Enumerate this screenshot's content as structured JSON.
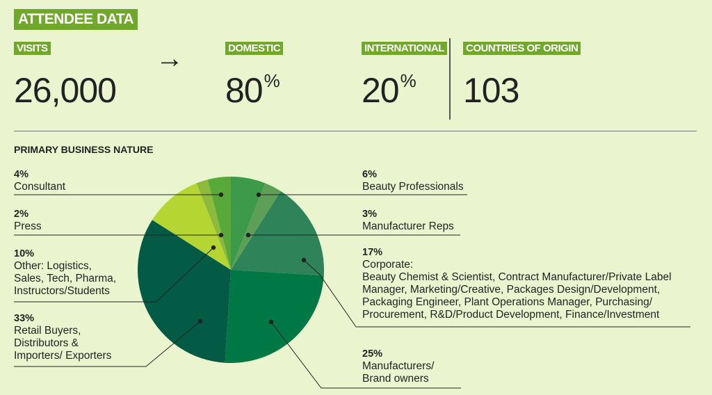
{
  "header": {
    "title": "ATTENDEE DATA"
  },
  "stats": {
    "visits": {
      "label": "VISITS",
      "value": "26,000"
    },
    "arrow": "→",
    "domestic": {
      "label": "DOMESTIC",
      "value": "80",
      "unit": "%"
    },
    "international": {
      "label": "INTERNATIONAL",
      "value": "20",
      "unit": "%"
    },
    "countries": {
      "label": "COUNTRIES OF ORIGIN",
      "value": "103"
    }
  },
  "section_title": "PRIMARY BUSINESS NATURE",
  "chart_data": {
    "type": "pie",
    "title": "PRIMARY BUSINESS NATURE",
    "slices": [
      {
        "label": "Beauty Professionals",
        "value": 6,
        "pct_text": "6%",
        "color": "#3c9a4a"
      },
      {
        "label": "Manufacturer Reps",
        "value": 3,
        "pct_text": "3%",
        "color": "#5e9f58"
      },
      {
        "label": "Corporate",
        "value": 17,
        "pct_text": "17%",
        "color": "#2e8358",
        "desc_lines": [
          "Corporate:",
          "Beauty Chemist & Scientist, Contract Manufacturer/Private Label",
          "Manager, Marketing/Creative, Packages Design/Development,",
          "Packaging Engineer, Plant Operations Manager, Purchasing/",
          "Procurement, R&D/Product Development, Finance/Investment"
        ]
      },
      {
        "label": "Manufacturers/ Brand owners",
        "value": 25,
        "pct_text": "25%",
        "color": "#007845",
        "desc_lines": [
          "Manufacturers/",
          "Brand owners"
        ]
      },
      {
        "label": "Retail Buyers, Distributors & Importers/ Exporters",
        "value": 33,
        "pct_text": "33%",
        "color": "#035b45",
        "desc_lines": [
          "Retail Buyers,",
          "Distributors &",
          "Importers/ Exporters"
        ]
      },
      {
        "label": "Other: Logistics, Sales, Tech, Pharma, Instructors/Students",
        "value": 10,
        "pct_text": "10%",
        "color": "#b4d532",
        "desc_lines": [
          "Other: Logistics,",
          "Sales, Tech, Pharma,",
          "Instructors/Students"
        ]
      },
      {
        "label": "Press",
        "value": 2,
        "pct_text": "2%",
        "color": "#8dba3d"
      },
      {
        "label": "Consultant",
        "value": 4,
        "pct_text": "4%",
        "color": "#59a83a"
      }
    ]
  }
}
